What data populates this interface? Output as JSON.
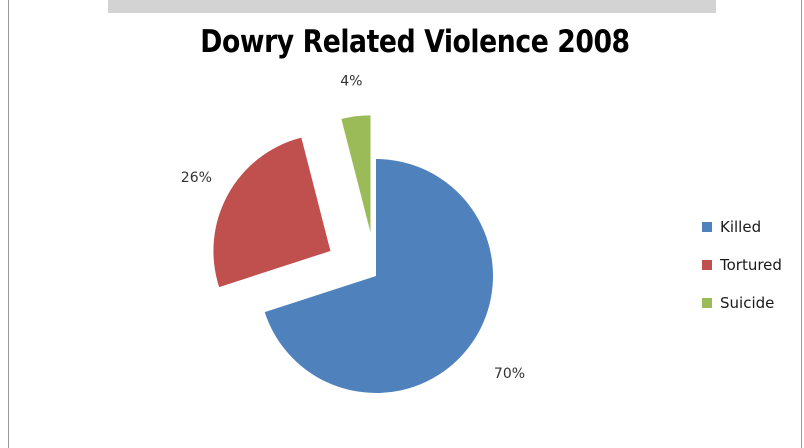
{
  "chart_data": {
    "type": "pie",
    "title": "Dowry Related Violence 2008",
    "slices": [
      {
        "name": "Killed",
        "value": 70,
        "label": "70%",
        "color": "#4f81bd",
        "exploded": false
      },
      {
        "name": "Tortured",
        "value": 26,
        "label": "26%",
        "color": "#c0504d",
        "exploded": true
      },
      {
        "name": "Suicide",
        "value": 4,
        "label": "4%",
        "color": "#9bbb59",
        "exploded": true
      }
    ],
    "legend": {
      "position": "right"
    }
  }
}
